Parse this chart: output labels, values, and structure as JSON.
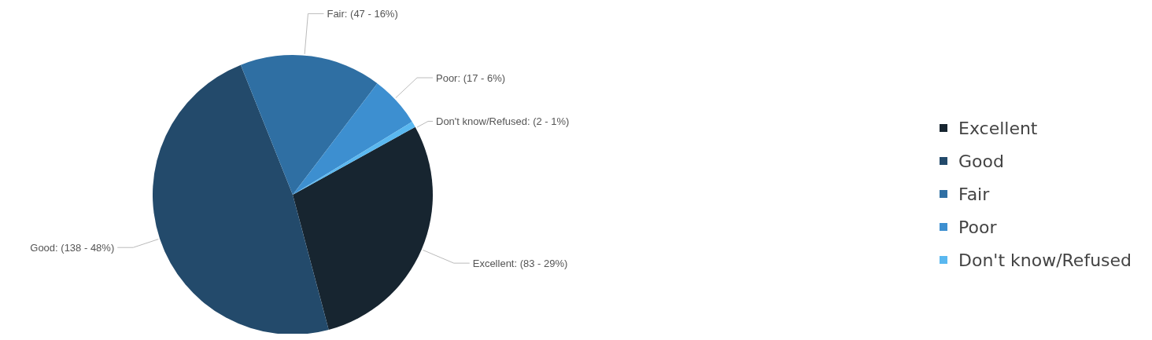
{
  "chart_data": {
    "type": "pie",
    "categories": [
      "Excellent",
      "Good",
      "Fair",
      "Poor",
      "Don't know/Refused"
    ],
    "values": [
      83,
      138,
      47,
      17,
      2
    ],
    "colors": [
      "#172530",
      "#234a6b",
      "#2f6fa3",
      "#3d8fd0",
      "#5ab8f0"
    ],
    "value_labels": [
      "Excellent: (83 - 29%)",
      "Good: (138 - 48%)",
      "Fair: (47 - 16%)",
      "Poor: (17 - 6%)",
      "Don't know/Refused: (2 - 1%)"
    ],
    "legend": "right"
  }
}
